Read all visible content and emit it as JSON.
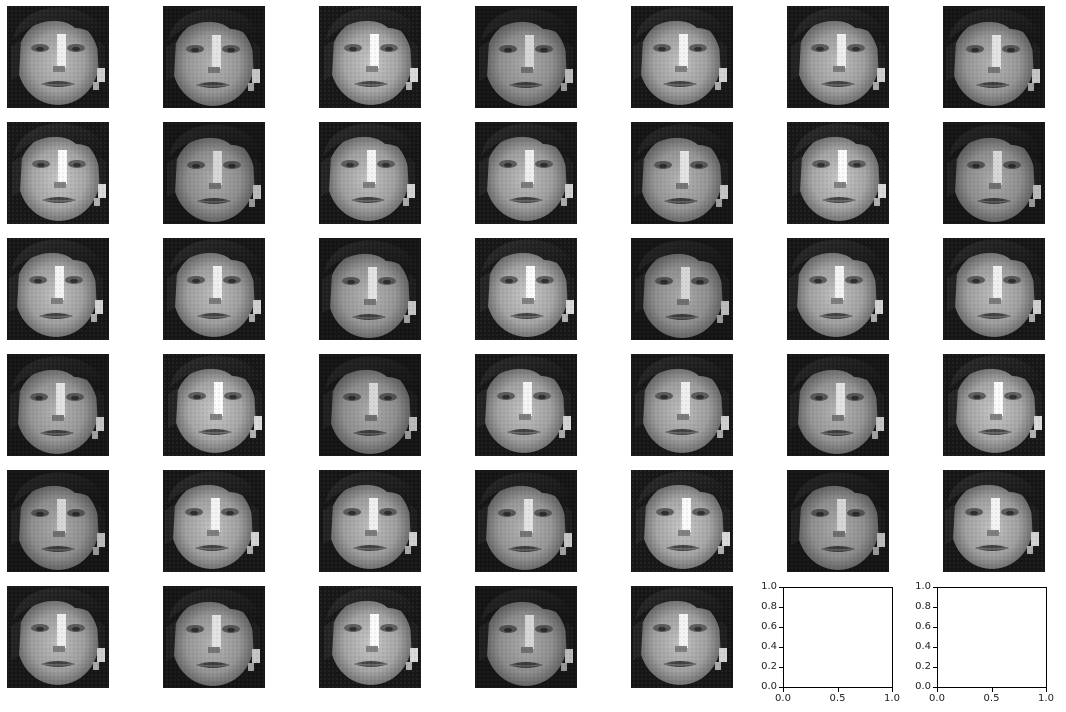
{
  "figure": {
    "rows": 6,
    "cols": 7,
    "image_count": 40,
    "image_content": "grayscale-face",
    "colormap": "gray",
    "empty_axes_count": 2,
    "empty_axes": {
      "x_ticks": [
        "0.0",
        "0.5",
        "1.0"
      ],
      "y_ticks": [
        "0.0",
        "0.2",
        "0.4",
        "0.6",
        "0.8",
        "1.0"
      ],
      "xlim": [
        0,
        1
      ],
      "ylim": [
        0,
        1
      ]
    }
  }
}
